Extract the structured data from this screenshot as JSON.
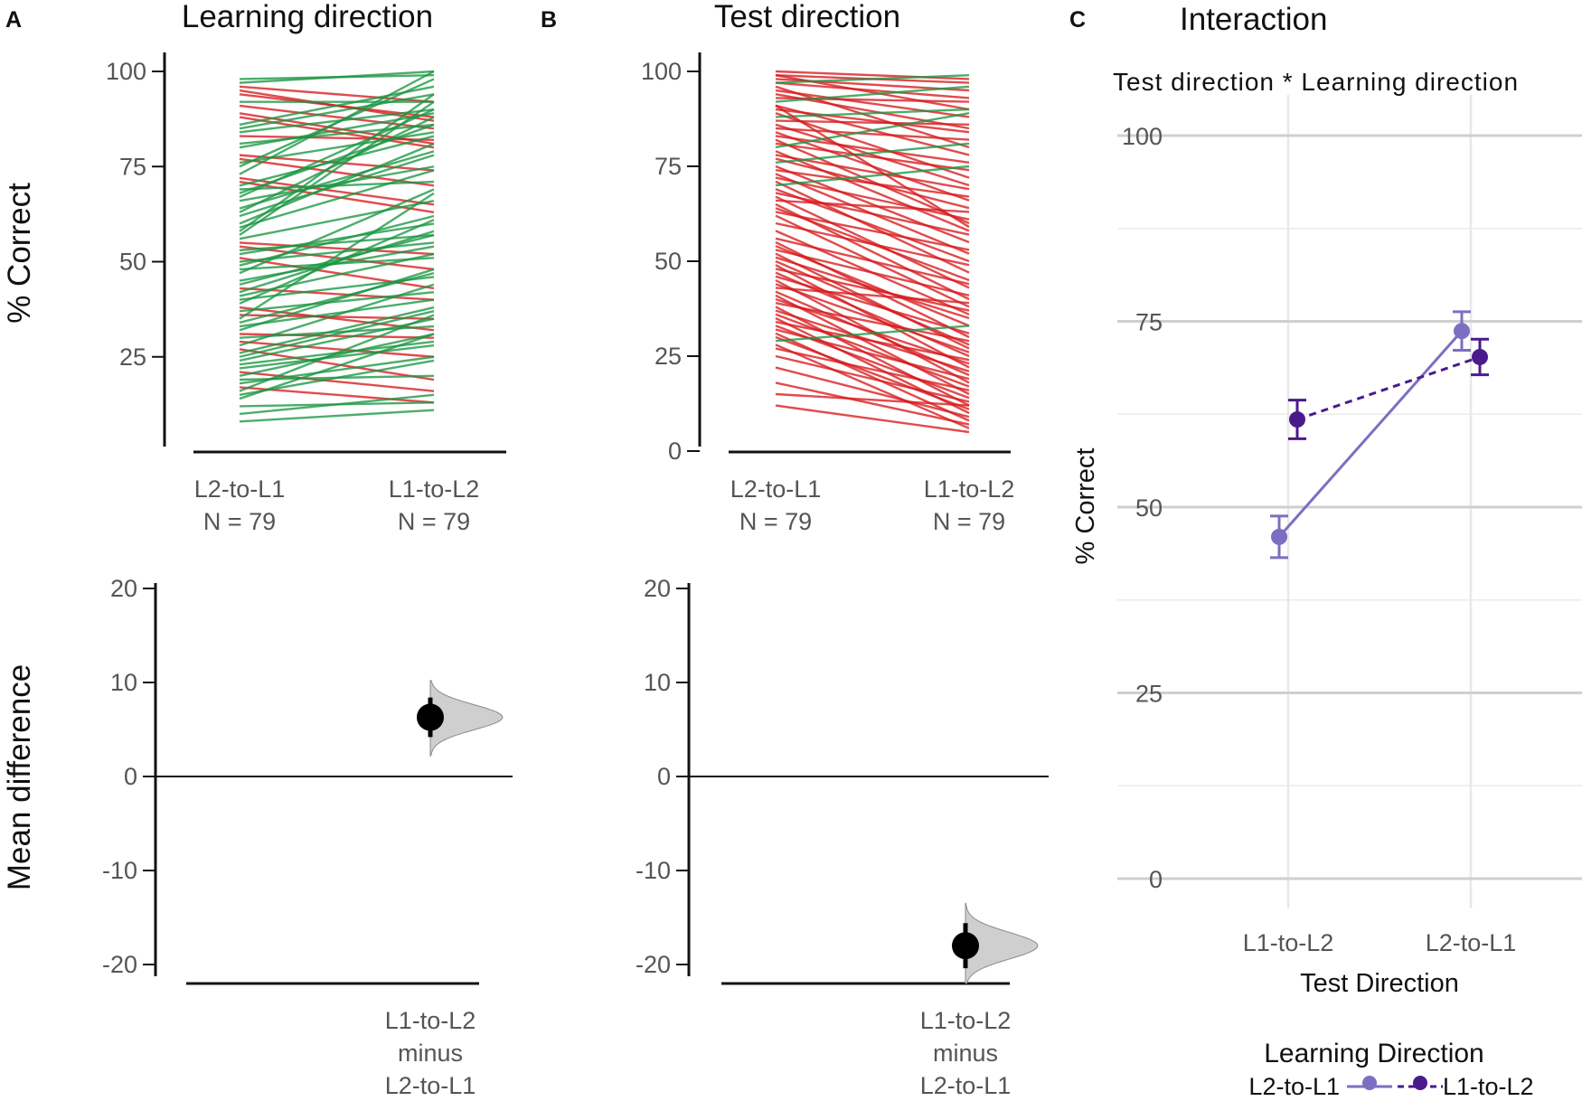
{
  "figure": {
    "panels": [
      {
        "letter": "A",
        "title": "Learning direction"
      },
      {
        "letter": "B",
        "title": "Test direction"
      },
      {
        "letter": "C",
        "title": "Interaction"
      }
    ],
    "top_ylabel": "% Correct",
    "bottom_ylabel": "Mean difference"
  },
  "chart_data": [
    {
      "id": "A_top",
      "type": "line",
      "title": "Learning direction",
      "ylabel": "% Correct",
      "ylim": [
        0,
        100
      ],
      "yticks": [
        "100",
        "75",
        "50",
        "25"
      ],
      "categories": [
        "L2-to-L1",
        "L1-to-L2"
      ],
      "category_labels": [
        [
          "L2-to-L1",
          "N = 79"
        ],
        [
          "L1-to-L2",
          "N = 79"
        ]
      ],
      "colors": {
        "increase": "#1a9641",
        "decrease": "#d7191c"
      },
      "pairs": [
        [
          96,
          92
        ],
        [
          95,
          87
        ],
        [
          94,
          88
        ],
        [
          92,
          92
        ],
        [
          91,
          85
        ],
        [
          89,
          81
        ],
        [
          88,
          80
        ],
        [
          86,
          96
        ],
        [
          85,
          94
        ],
        [
          84,
          90
        ],
        [
          83,
          82
        ],
        [
          81,
          86
        ],
        [
          80,
          89
        ],
        [
          78,
          74
        ],
        [
          77,
          70
        ],
        [
          76,
          84
        ],
        [
          75,
          98
        ],
        [
          73,
          100
        ],
        [
          72,
          65
        ],
        [
          71,
          63
        ],
        [
          70,
          83
        ],
        [
          69,
          71
        ],
        [
          68,
          86
        ],
        [
          67,
          90
        ],
        [
          66,
          75
        ],
        [
          64,
          79
        ],
        [
          63,
          88
        ],
        [
          62,
          78
        ],
        [
          60,
          81
        ],
        [
          59,
          74
        ],
        [
          58,
          94
        ],
        [
          57,
          92
        ],
        [
          56,
          66
        ],
        [
          55,
          52
        ],
        [
          54,
          48
        ],
        [
          53,
          57
        ],
        [
          52,
          60
        ],
        [
          51,
          43
        ],
        [
          50,
          55
        ],
        [
          49,
          62
        ],
        [
          48,
          51
        ],
        [
          47,
          69
        ],
        [
          45,
          54
        ],
        [
          44,
          57
        ],
        [
          43,
          40
        ],
        [
          42,
          58
        ],
        [
          41,
          52
        ],
        [
          40,
          46
        ],
        [
          39,
          61
        ],
        [
          38,
          32
        ],
        [
          37,
          42
        ],
        [
          36,
          35
        ],
        [
          35,
          68
        ],
        [
          34,
          47
        ],
        [
          33,
          40
        ],
        [
          32,
          48
        ],
        [
          31,
          30
        ],
        [
          30,
          33
        ],
        [
          29,
          25
        ],
        [
          28,
          44
        ],
        [
          27,
          19
        ],
        [
          26,
          38
        ],
        [
          25,
          37
        ],
        [
          24,
          35
        ],
        [
          23,
          29
        ],
        [
          22,
          28
        ],
        [
          21,
          16
        ],
        [
          20,
          31
        ],
        [
          19,
          20
        ],
        [
          18,
          25
        ],
        [
          17,
          13
        ],
        [
          16,
          36
        ],
        [
          15,
          24
        ],
        [
          14,
          31
        ],
        [
          12,
          13
        ],
        [
          10,
          15
        ],
        [
          8,
          11
        ],
        [
          98,
          99
        ],
        [
          97,
          100
        ]
      ]
    },
    {
      "id": "A_bottom",
      "type": "scatter",
      "ylabel": "Mean difference",
      "ylim": [
        -22,
        22
      ],
      "yticks": [
        "20",
        "10",
        "0",
        "-10",
        "-20"
      ],
      "x_label_lines": [
        "L1-to-L2",
        "minus",
        "L2-to-L1"
      ],
      "mean_difference": 6.3,
      "ci": [
        4.2,
        8.4
      ],
      "distribution_range": [
        2.2,
        10.2
      ]
    },
    {
      "id": "B_top",
      "type": "line",
      "title": "Test direction",
      "ylim": [
        0,
        100
      ],
      "yticks": [
        "100",
        "75",
        "50",
        "25",
        "0"
      ],
      "categories": [
        "L2-to-L1",
        "L1-to-L2"
      ],
      "category_labels": [
        [
          "L2-to-L1",
          "N = 79"
        ],
        [
          "L1-to-L2",
          "N = 79"
        ]
      ],
      "colors": {
        "increase": "#1a9641",
        "decrease": "#d7191c"
      },
      "pairs": [
        [
          100,
          98
        ],
        [
          99,
          97
        ],
        [
          99,
          90
        ],
        [
          98,
          95
        ],
        [
          97,
          93
        ],
        [
          96,
          80
        ],
        [
          95,
          88
        ],
        [
          94,
          85
        ],
        [
          93,
          92
        ],
        [
          92,
          96
        ],
        [
          91,
          78
        ],
        [
          90,
          84
        ],
        [
          89,
          72
        ],
        [
          88,
          90
        ],
        [
          87,
          86
        ],
        [
          86,
          70
        ],
        [
          85,
          82
        ],
        [
          84,
          66
        ],
        [
          83,
          76
        ],
        [
          82,
          60
        ],
        [
          81,
          74
        ],
        [
          80,
          89
        ],
        [
          79,
          58
        ],
        [
          78,
          69
        ],
        [
          77,
          64
        ],
        [
          76,
          81
        ],
        [
          75,
          55
        ],
        [
          74,
          67
        ],
        [
          73,
          52
        ],
        [
          72,
          61
        ],
        [
          71,
          47
        ],
        [
          70,
          75
        ],
        [
          69,
          50
        ],
        [
          68,
          57
        ],
        [
          67,
          43
        ],
        [
          66,
          63
        ],
        [
          65,
          40
        ],
        [
          64,
          45
        ],
        [
          63,
          53
        ],
        [
          62,
          38
        ],
        [
          60,
          49
        ],
        [
          58,
          36
        ],
        [
          56,
          44
        ],
        [
          55,
          30
        ],
        [
          54,
          33
        ],
        [
          53,
          41
        ],
        [
          52,
          27
        ],
        [
          51,
          35
        ],
        [
          50,
          28
        ],
        [
          49,
          22
        ],
        [
          48,
          37
        ],
        [
          47,
          25
        ],
        [
          46,
          31
        ],
        [
          45,
          18
        ],
        [
          44,
          26
        ],
        [
          43,
          39
        ],
        [
          42,
          20
        ],
        [
          41,
          15
        ],
        [
          40,
          23
        ],
        [
          39,
          29
        ],
        [
          38,
          12
        ],
        [
          37,
          21
        ],
        [
          36,
          17
        ],
        [
          35,
          10
        ],
        [
          34,
          24
        ],
        [
          33,
          14
        ],
        [
          32,
          19
        ],
        [
          31,
          8
        ],
        [
          30,
          11
        ],
        [
          29,
          33
        ],
        [
          28,
          6
        ],
        [
          27,
          16
        ],
        [
          25,
          13
        ],
        [
          22,
          9
        ],
        [
          18,
          7
        ],
        [
          15,
          12
        ],
        [
          12,
          5
        ],
        [
          91,
          59
        ],
        [
          97,
          99
        ]
      ]
    },
    {
      "id": "B_bottom",
      "type": "scatter",
      "ylim": [
        -22,
        22
      ],
      "yticks": [
        "20",
        "10",
        "0",
        "-10",
        "-20"
      ],
      "x_label_lines": [
        "L1-to-L2",
        "minus",
        "L2-to-L1"
      ],
      "mean_difference": -18.0,
      "ci": [
        -20.4,
        -15.6
      ],
      "distribution_range": [
        -22.0,
        -13.5
      ]
    },
    {
      "id": "C",
      "type": "line",
      "title": "Interaction",
      "subtitle": "Test direction * Learning direction",
      "xlabel": "Test Direction",
      "ylabel": "% Correct",
      "ylim": [
        0,
        100
      ],
      "yticks": [
        "100",
        "75",
        "50",
        "25",
        "0"
      ],
      "categories": [
        "L1-to-L2",
        "L2-to-L1"
      ],
      "legend_title": "Learning Direction",
      "series": [
        {
          "name": "L2-to-L1",
          "values": [
            46,
            73.7
          ],
          "errors": [
            2.8,
            2.6
          ],
          "color": "#7b6fc1",
          "dash": "solid"
        },
        {
          "name": "L1-to-L2",
          "values": [
            61.8,
            70.2
          ],
          "errors": [
            2.6,
            2.4
          ],
          "color": "#4a1a8c",
          "dash": "dashed"
        }
      ]
    }
  ]
}
